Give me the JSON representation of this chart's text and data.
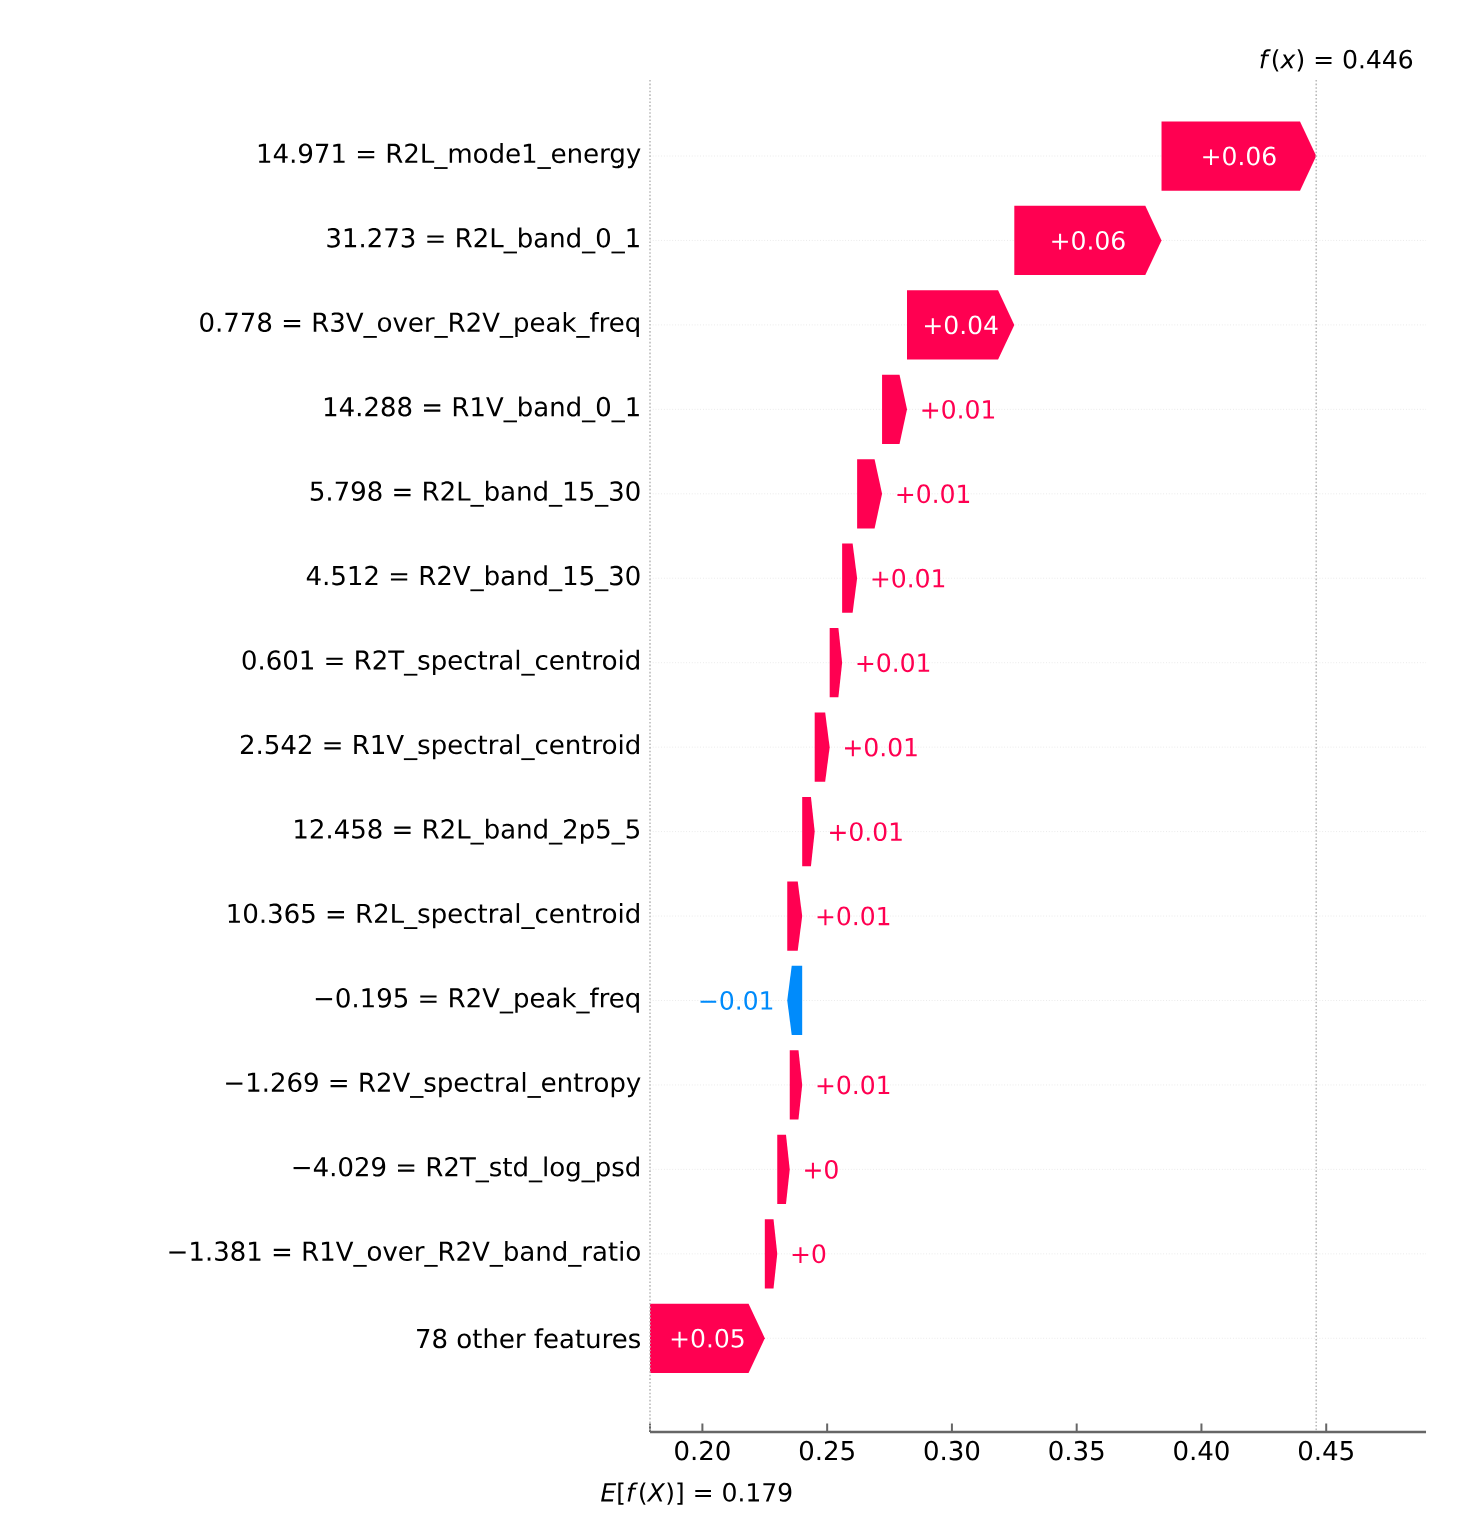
{
  "chart_data": {
    "type": "bar",
    "orientation": "horizontal",
    "categories": [
      "14.971 = R2L_mode1_energy",
      "31.273 = R2L_band_0_1",
      "0.778 = R3V_over_R2V_peak_freq",
      "14.288 = R1V_band_0_1",
      "5.798 = R2L_band_15_30",
      "4.512 = R2V_band_15_30",
      "0.601 = R2T_spectral_centroid",
      "2.542 = R1V_spectral_centroid",
      "12.458 = R2L_band_2p5_5",
      "10.365 = R2L_spectral_centroid",
      "−0.195 = R2V_peak_freq",
      "−1.269 = R2V_spectral_entropy",
      "−4.029 = R2T_std_log_psd",
      "−1.381 = R1V_over_R2V_band_ratio",
      "78 other features"
    ],
    "base": [
      0.384,
      0.325,
      0.282,
      0.272,
      0.262,
      0.256,
      0.251,
      0.245,
      0.24,
      0.234,
      0.24,
      0.235,
      0.23,
      0.225,
      0.179
    ],
    "values": [
      0.062,
      0.059,
      0.043,
      0.01,
      0.01,
      0.006,
      0.005,
      0.006,
      0.005,
      0.006,
      -0.006,
      0.005,
      0.005,
      0.005,
      0.046
    ],
    "value_labels": [
      "+0.06",
      "+0.06",
      "+0.04",
      "+0.01",
      "+0.01",
      "+0.01",
      "+0.01",
      "+0.01",
      "+0.01",
      "+0.01",
      "−0.01",
      "+0.01",
      "+0",
      "+0",
      "+0.05"
    ],
    "colors": [
      "#ff0051",
      "#ff0051",
      "#ff0051",
      "#ff0051",
      "#ff0051",
      "#ff0051",
      "#ff0051",
      "#ff0051",
      "#ff0051",
      "#ff0051",
      "#008bfb",
      "#ff0051",
      "#ff0051",
      "#ff0051",
      "#ff0051"
    ],
    "xlim": [
      0.179,
      0.49
    ],
    "xticks": [
      {
        "value": 0.179,
        "label": null
      },
      {
        "value": 0.2,
        "label": "0.20"
      },
      0.25,
      {
        "value": 0.3,
        "label": "0.30"
      },
      0.35,
      {
        "value": 0.4,
        "label": "0.40"
      },
      0.45
    ],
    "grid": "y",
    "ref_lines": [
      {
        "axis": "x",
        "value": 0.446,
        "label": "*f*(*x*) = 0.446",
        "color": "#bbbbbb",
        "line_style": "dotted"
      },
      {
        "axis": "x",
        "value": 0.179,
        "label": "*E*[*f*(*X*)] = 0.179",
        "color": "#bbbbbb",
        "line_style": "dotted"
      }
    ]
  }
}
